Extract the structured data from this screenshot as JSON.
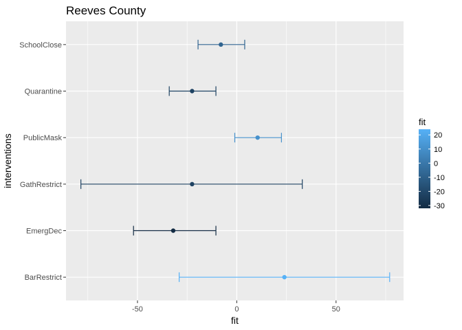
{
  "chart_data": {
    "type": "errorbar",
    "title": "Reeves County",
    "xlabel": "fit",
    "ylabel": "interventions",
    "xlim": [
      -86,
      84
    ],
    "xticks": [
      -50,
      0,
      50
    ],
    "grid": true,
    "categories": [
      "SchoolClose",
      "Quarantine",
      "PublicMask",
      "GathRestrict",
      "EmergDec",
      "BarRestrict"
    ],
    "points": [
      {
        "category": "SchoolClose",
        "fit": -8,
        "lower": -19.5,
        "upper": 4
      },
      {
        "category": "Quarantine",
        "fit": -22.5,
        "lower": -34,
        "upper": -10.5
      },
      {
        "category": "PublicMask",
        "fit": 10.5,
        "lower": -1,
        "upper": 22.5
      },
      {
        "category": "GathRestrict",
        "fit": -22.5,
        "lower": -78.5,
        "upper": 33
      },
      {
        "category": "EmergDec",
        "fit": -32,
        "lower": -52,
        "upper": -10.5
      },
      {
        "category": "BarRestrict",
        "fit": 24,
        "lower": -29,
        "upper": 77
      }
    ],
    "legend": {
      "title": "fit",
      "position": "right",
      "ticks": [
        20,
        10,
        0,
        -10,
        -20,
        -30
      ],
      "range": [
        -32,
        24
      ],
      "colors": {
        "low": "#132b43",
        "high": "#56b1f7"
      }
    }
  }
}
